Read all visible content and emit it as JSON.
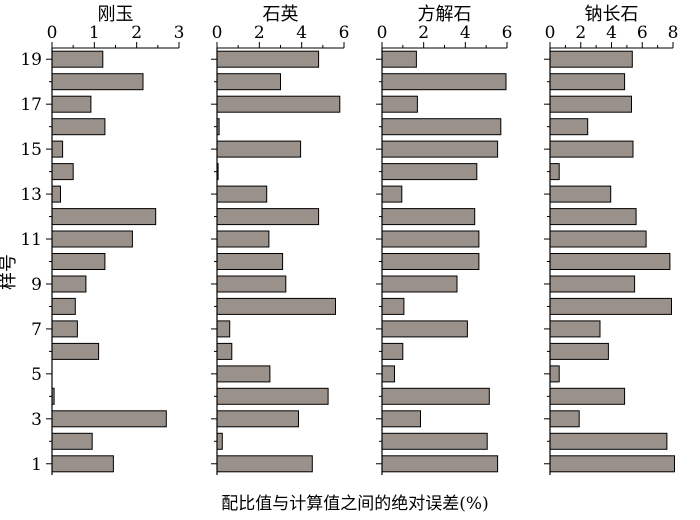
{
  "chart_data": {
    "type": "bar",
    "orientation": "horizontal",
    "shared_y_label": "样号",
    "shared_x_label": "配比值与计算值之间的绝对误差(%)",
    "categories": [
      1,
      2,
      3,
      4,
      5,
      6,
      7,
      8,
      9,
      10,
      11,
      12,
      13,
      14,
      15,
      16,
      17,
      18,
      19
    ],
    "y_tick_labels": [
      "1",
      "3",
      "5",
      "7",
      "9",
      "11",
      "13",
      "15",
      "17",
      "19"
    ],
    "bar_color": "#9b918b",
    "panels": [
      {
        "title": "刚玉",
        "xlim": [
          0,
          3
        ],
        "x_ticks": [
          "0",
          "1",
          "2",
          "3"
        ],
        "values": [
          1.45,
          0.95,
          2.7,
          0.05,
          0,
          1.1,
          0.6,
          0.55,
          0.8,
          1.25,
          1.9,
          2.45,
          0.2,
          0.5,
          0.25,
          1.25,
          0.92,
          2.15,
          1.2
        ]
      },
      {
        "title": "石英",
        "xlim": [
          0,
          6
        ],
        "x_ticks": [
          "0",
          "2",
          "4",
          "6"
        ],
        "values": [
          4.5,
          0.25,
          3.85,
          5.25,
          2.5,
          0.7,
          0.6,
          5.6,
          3.25,
          3.1,
          2.45,
          4.8,
          2.35,
          0.05,
          3.95,
          0.1,
          5.8,
          3.0,
          4.8
        ]
      },
      {
        "title": "方解石",
        "xlim": [
          0,
          6
        ],
        "x_ticks": [
          "0",
          "2",
          "4",
          "6"
        ],
        "values": [
          5.55,
          5.05,
          1.85,
          5.15,
          0.6,
          1.0,
          4.1,
          1.05,
          3.6,
          4.65,
          4.65,
          4.45,
          0.95,
          4.55,
          5.55,
          5.7,
          1.7,
          5.95,
          1.65
        ]
      },
      {
        "title": "钠长石",
        "xlim": [
          0,
          8
        ],
        "x_ticks": [
          "0",
          "2",
          "4",
          "6",
          "8"
        ],
        "values": [
          8.1,
          7.6,
          1.9,
          4.85,
          0.6,
          3.8,
          3.25,
          7.9,
          5.5,
          7.8,
          6.25,
          5.6,
          3.95,
          0.6,
          5.4,
          2.45,
          5.3,
          4.85,
          5.35
        ]
      }
    ]
  }
}
